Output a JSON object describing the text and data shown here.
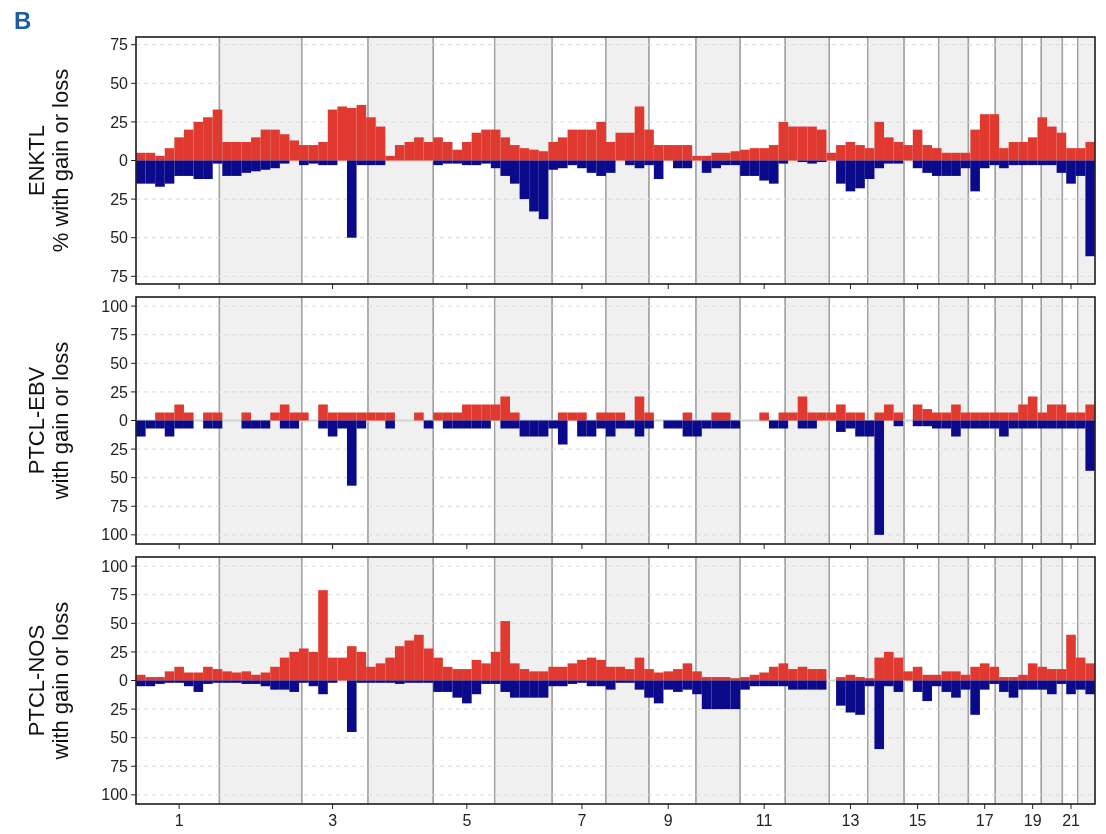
{
  "chart_data": [
    {
      "type": "bar",
      "ylabel": "ENKTL\n% with gain or loss",
      "annotations": [
        "B"
      ],
      "stacked": true,
      "categories": [
        null,
        null,
        null,
        null,
        "1",
        null,
        null,
        null,
        null,
        null,
        null,
        null,
        null,
        null,
        null,
        null,
        null,
        null,
        null,
        null,
        "3",
        null,
        null,
        null,
        null,
        null,
        null,
        null,
        null,
        null,
        null,
        null,
        null,
        null,
        "5",
        null,
        null,
        null,
        null,
        null,
        null,
        null,
        null,
        null,
        null,
        null,
        "7",
        null,
        null,
        null,
        null,
        null,
        null,
        null,
        null,
        "9",
        null,
        null,
        null,
        null,
        null,
        null,
        null,
        null,
        null,
        "11",
        null,
        null,
        null,
        null,
        null,
        null,
        null,
        null,
        "13",
        null,
        null,
        null,
        null,
        null,
        null,
        "15",
        null,
        null,
        null,
        null,
        null,
        null,
        "17",
        null,
        null,
        null,
        null,
        "19",
        null,
        null,
        null,
        "21",
        null,
        null
      ],
      "series": [
        {
          "color": "#e03a30",
          "values": [
            5,
            5,
            3,
            8,
            15,
            20,
            25,
            28,
            33,
            12,
            12,
            12,
            15,
            20,
            20,
            17,
            13,
            10,
            10,
            12,
            33,
            35,
            34,
            36,
            28,
            22,
            3,
            10,
            12,
            15,
            12,
            15,
            12,
            7,
            12,
            18,
            20,
            20,
            15,
            10,
            8,
            7,
            6,
            12,
            15,
            20,
            20,
            20,
            25,
            12,
            18,
            18,
            35,
            20,
            10,
            10,
            10,
            10,
            3,
            3,
            5,
            5,
            6,
            7,
            8,
            8,
            10,
            25,
            22,
            22,
            22,
            20,
            5,
            10,
            12,
            10,
            8,
            25,
            15,
            12,
            10,
            20,
            10,
            8,
            5,
            5,
            5,
            20,
            30,
            30,
            8,
            12,
            12,
            15,
            28,
            22,
            18,
            8,
            8,
            12
          ]
        },
        {
          "color": "#0a0a8a",
          "values": [
            -15,
            -15,
            -17,
            -15,
            -10,
            -10,
            -12,
            -12,
            -2,
            -10,
            -10,
            -8,
            -7,
            -6,
            -5,
            -2,
            0,
            -3,
            -2,
            -3,
            -3,
            0,
            -50,
            -3,
            -3,
            -3,
            0,
            0,
            0,
            0,
            0,
            -3,
            -2,
            -2,
            -3,
            -3,
            -2,
            -5,
            -10,
            -15,
            -25,
            -33,
            -38,
            -6,
            -5,
            -3,
            -5,
            -8,
            -10,
            -8,
            0,
            -3,
            -5,
            -3,
            -12,
            0,
            -5,
            -5,
            0,
            -8,
            -5,
            -3,
            -3,
            -10,
            -10,
            -13,
            -15,
            -2,
            0,
            -1,
            -2,
            -1,
            0,
            -15,
            -20,
            -18,
            -12,
            -5,
            -2,
            -2,
            0,
            -5,
            -8,
            -10,
            -10,
            -10,
            -5,
            -20,
            -5,
            -3,
            -5,
            -3,
            -3,
            -3,
            -3,
            -3,
            -8,
            -15,
            -10,
            -62
          ]
        }
      ],
      "ylim": [
        -80,
        80
      ],
      "yticks": [
        {
          "value": -75,
          "label": "75"
        },
        {
          "value": -50,
          "label": "50"
        },
        {
          "value": -25,
          "label": "25"
        },
        0,
        25,
        50,
        75
      ],
      "tick_labels": "y",
      "grid": "y",
      "ref_lines": [
        {
          "axis": "y",
          "value": 0,
          "color": "#d4d4d4",
          "line_style": "solid"
        }
      ]
    },
    {
      "type": "bar",
      "ylabel": "PTCL-EBV\nwith gain or loss",
      "stacked": true,
      "categories": [
        null,
        null,
        null,
        null,
        "1",
        null,
        null,
        null,
        null,
        null,
        null,
        null,
        null,
        null,
        null,
        null,
        null,
        null,
        null,
        null,
        "3",
        null,
        null,
        null,
        null,
        null,
        null,
        null,
        null,
        null,
        null,
        null,
        null,
        null,
        "5",
        null,
        null,
        null,
        null,
        null,
        null,
        null,
        null,
        null,
        null,
        null,
        "7",
        null,
        null,
        null,
        null,
        null,
        null,
        null,
        null,
        "9",
        null,
        null,
        null,
        null,
        null,
        null,
        null,
        null,
        null,
        "11",
        null,
        null,
        null,
        null,
        null,
        null,
        null,
        null,
        "13",
        null,
        null,
        null,
        null,
        null,
        null,
        "15",
        null,
        null,
        null,
        null,
        null,
        null,
        "17",
        null,
        null,
        null,
        null,
        "19",
        null,
        null,
        null,
        "21",
        null,
        null
      ],
      "series": [
        {
          "color": "#e03a30",
          "values": [
            0,
            0,
            7,
            7,
            14,
            7,
            0,
            7,
            7,
            0,
            0,
            7,
            0,
            0,
            7,
            14,
            7,
            7,
            0,
            14,
            7,
            7,
            7,
            7,
            7,
            7,
            7,
            0,
            0,
            7,
            0,
            7,
            7,
            7,
            14,
            14,
            14,
            14,
            21,
            7,
            0,
            0,
            0,
            0,
            7,
            7,
            7,
            0,
            7,
            7,
            7,
            0,
            21,
            7,
            0,
            0,
            0,
            7,
            0,
            0,
            7,
            7,
            0,
            0,
            0,
            7,
            0,
            7,
            7,
            21,
            7,
            7,
            7,
            14,
            7,
            7,
            0,
            7,
            14,
            7,
            0,
            14,
            10,
            7,
            7,
            14,
            7,
            7,
            7,
            7,
            7,
            7,
            14,
            21,
            7,
            14,
            14,
            7,
            7,
            14
          ]
        },
        {
          "color": "#0a0a8a",
          "values": [
            -14,
            -7,
            -7,
            -14,
            -7,
            -7,
            0,
            -7,
            -7,
            0,
            0,
            -7,
            -7,
            -7,
            0,
            -7,
            -7,
            0,
            0,
            -7,
            -14,
            -7,
            -57,
            -7,
            0,
            0,
            -7,
            0,
            0,
            0,
            -7,
            0,
            -7,
            -7,
            -7,
            -7,
            -7,
            0,
            -7,
            -7,
            -14,
            -14,
            -14,
            -7,
            -21,
            0,
            -14,
            -14,
            -7,
            -14,
            -7,
            -7,
            -14,
            -7,
            0,
            -7,
            -7,
            -14,
            -14,
            -7,
            -7,
            -7,
            -7,
            0,
            0,
            0,
            -7,
            -7,
            0,
            -7,
            -7,
            0,
            0,
            -10,
            -7,
            -14,
            -14,
            -100,
            0,
            -5,
            0,
            -5,
            -5,
            -7,
            -7,
            -14,
            -7,
            -7,
            -7,
            -7,
            -14,
            -7,
            -7,
            -7,
            -7,
            -7,
            -7,
            -7,
            -7,
            -44
          ]
        }
      ],
      "ylim": [
        -108,
        108
      ],
      "yticks": [
        {
          "value": -100,
          "label": "100"
        },
        {
          "value": -75,
          "label": "75"
        },
        {
          "value": -50,
          "label": "50"
        },
        {
          "value": -25,
          "label": "25"
        },
        0,
        25,
        50,
        75,
        100
      ],
      "tick_labels": "y",
      "grid": "y",
      "ref_lines": [
        {
          "axis": "y",
          "value": 0,
          "color": "#d4d4d4",
          "line_style": "solid"
        }
      ]
    },
    {
      "type": "bar",
      "ylabel": "PTCL-NOS\nwith gain or loss",
      "stacked": true,
      "categories": [
        null,
        null,
        null,
        null,
        "1",
        null,
        null,
        null,
        null,
        null,
        null,
        null,
        null,
        null,
        null,
        null,
        null,
        null,
        null,
        null,
        "3",
        null,
        null,
        null,
        null,
        null,
        null,
        null,
        null,
        null,
        null,
        null,
        null,
        null,
        "5",
        null,
        null,
        null,
        null,
        null,
        null,
        null,
        null,
        null,
        null,
        null,
        "7",
        null,
        null,
        null,
        null,
        null,
        null,
        null,
        null,
        "9",
        null,
        null,
        null,
        null,
        null,
        null,
        null,
        null,
        null,
        "11",
        null,
        null,
        null,
        null,
        null,
        null,
        null,
        null,
        "13",
        null,
        null,
        null,
        null,
        null,
        null,
        "15",
        null,
        null,
        null,
        null,
        null,
        null,
        "17",
        null,
        null,
        null,
        null,
        "19",
        null,
        null,
        null,
        "21",
        null,
        null
      ],
      "series": [
        {
          "color": "#e03a30",
          "values": [
            5,
            3,
            3,
            8,
            12,
            7,
            7,
            12,
            10,
            8,
            7,
            8,
            5,
            7,
            12,
            20,
            25,
            28,
            25,
            79,
            20,
            20,
            30,
            25,
            12,
            15,
            20,
            30,
            35,
            40,
            28,
            20,
            12,
            10,
            10,
            18,
            15,
            25,
            52,
            15,
            10,
            8,
            8,
            12,
            12,
            15,
            18,
            20,
            18,
            12,
            12,
            10,
            20,
            10,
            7,
            8,
            10,
            15,
            8,
            3,
            3,
            3,
            2,
            3,
            5,
            7,
            12,
            15,
            10,
            12,
            10,
            10,
            0,
            3,
            5,
            3,
            2,
            20,
            25,
            20,
            8,
            12,
            5,
            5,
            8,
            8,
            5,
            12,
            15,
            12,
            3,
            3,
            5,
            15,
            12,
            10,
            10,
            40,
            20,
            15
          ]
        },
        {
          "color": "#0a0a8a",
          "values": [
            -5,
            -5,
            -3,
            -2,
            -2,
            -5,
            -10,
            -3,
            -2,
            -2,
            -2,
            -3,
            -3,
            -5,
            -8,
            -8,
            -10,
            -2,
            -5,
            -12,
            -2,
            0,
            -45,
            -2,
            -2,
            -2,
            -2,
            -3,
            -2,
            -2,
            -2,
            -10,
            -10,
            -15,
            -20,
            -12,
            -3,
            -3,
            -10,
            -15,
            -15,
            -15,
            -15,
            -5,
            -5,
            -3,
            -2,
            -5,
            -5,
            -8,
            -2,
            -2,
            -8,
            -15,
            -20,
            -8,
            -10,
            -8,
            -12,
            -25,
            -25,
            -25,
            -25,
            -8,
            -5,
            -5,
            -5,
            -5,
            -8,
            -8,
            -8,
            -8,
            0,
            -22,
            -28,
            -30,
            -5,
            -60,
            -5,
            -10,
            0,
            -10,
            -18,
            -5,
            -10,
            -15,
            -8,
            -30,
            -8,
            -3,
            -10,
            -15,
            -8,
            -8,
            -8,
            -12,
            -3,
            -12,
            -8,
            -12
          ]
        }
      ],
      "ylim": [
        -108,
        108
      ],
      "yticks": [
        {
          "value": -100,
          "label": "100"
        },
        {
          "value": -75,
          "label": "75"
        },
        {
          "value": -50,
          "label": "50"
        },
        {
          "value": -25,
          "label": "25"
        },
        0,
        25,
        50,
        75,
        100
      ],
      "grid": "y",
      "ref_lines": [
        {
          "axis": "y",
          "value": 0,
          "color": "#d4d4d4",
          "line_style": "solid"
        }
      ]
    }
  ]
}
